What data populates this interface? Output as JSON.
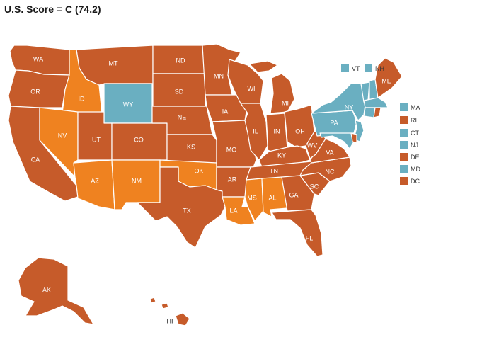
{
  "title": "U.S. Score = C (74.2)",
  "colors": {
    "C": "#c65b2a",
    "B": "#6aafc1",
    "D": "#ef8220"
  },
  "states": [
    {
      "id": "WA",
      "grade": "C"
    },
    {
      "id": "OR",
      "grade": "C"
    },
    {
      "id": "CA",
      "grade": "C"
    },
    {
      "id": "ID",
      "grade": "D"
    },
    {
      "id": "NV",
      "grade": "D"
    },
    {
      "id": "MT",
      "grade": "C"
    },
    {
      "id": "WY",
      "grade": "B"
    },
    {
      "id": "UT",
      "grade": "C"
    },
    {
      "id": "AZ",
      "grade": "D"
    },
    {
      "id": "CO",
      "grade": "C"
    },
    {
      "id": "NM",
      "grade": "D"
    },
    {
      "id": "ND",
      "grade": "C"
    },
    {
      "id": "SD",
      "grade": "C"
    },
    {
      "id": "NE",
      "grade": "C"
    },
    {
      "id": "KS",
      "grade": "C"
    },
    {
      "id": "OK",
      "grade": "D"
    },
    {
      "id": "TX",
      "grade": "C"
    },
    {
      "id": "MN",
      "grade": "C"
    },
    {
      "id": "IA",
      "grade": "C"
    },
    {
      "id": "MO",
      "grade": "C"
    },
    {
      "id": "AR",
      "grade": "C"
    },
    {
      "id": "LA",
      "grade": "D"
    },
    {
      "id": "WI",
      "grade": "C"
    },
    {
      "id": "IL",
      "grade": "C"
    },
    {
      "id": "MI",
      "grade": "C"
    },
    {
      "id": "IN",
      "grade": "C"
    },
    {
      "id": "OH",
      "grade": "C"
    },
    {
      "id": "KY",
      "grade": "C"
    },
    {
      "id": "TN",
      "grade": "C"
    },
    {
      "id": "MS",
      "grade": "D"
    },
    {
      "id": "AL",
      "grade": "D"
    },
    {
      "id": "GA",
      "grade": "C"
    },
    {
      "id": "FL",
      "grade": "C"
    },
    {
      "id": "SC",
      "grade": "C"
    },
    {
      "id": "NC",
      "grade": "C"
    },
    {
      "id": "VA",
      "grade": "C"
    },
    {
      "id": "WV",
      "grade": "C"
    },
    {
      "id": "PA",
      "grade": "B"
    },
    {
      "id": "NY",
      "grade": "B"
    },
    {
      "id": "ME",
      "grade": "C"
    },
    {
      "id": "AK",
      "grade": "C"
    },
    {
      "id": "HI",
      "grade": "C"
    }
  ],
  "small_states": [
    {
      "id": "VT",
      "grade": "B"
    },
    {
      "id": "NH",
      "grade": "B"
    },
    {
      "id": "MA",
      "grade": "B"
    },
    {
      "id": "RI",
      "grade": "C"
    },
    {
      "id": "CT",
      "grade": "B"
    },
    {
      "id": "NJ",
      "grade": "B"
    },
    {
      "id": "DE",
      "grade": "C"
    },
    {
      "id": "MD",
      "grade": "B"
    },
    {
      "id": "DC",
      "grade": "C"
    }
  ]
}
